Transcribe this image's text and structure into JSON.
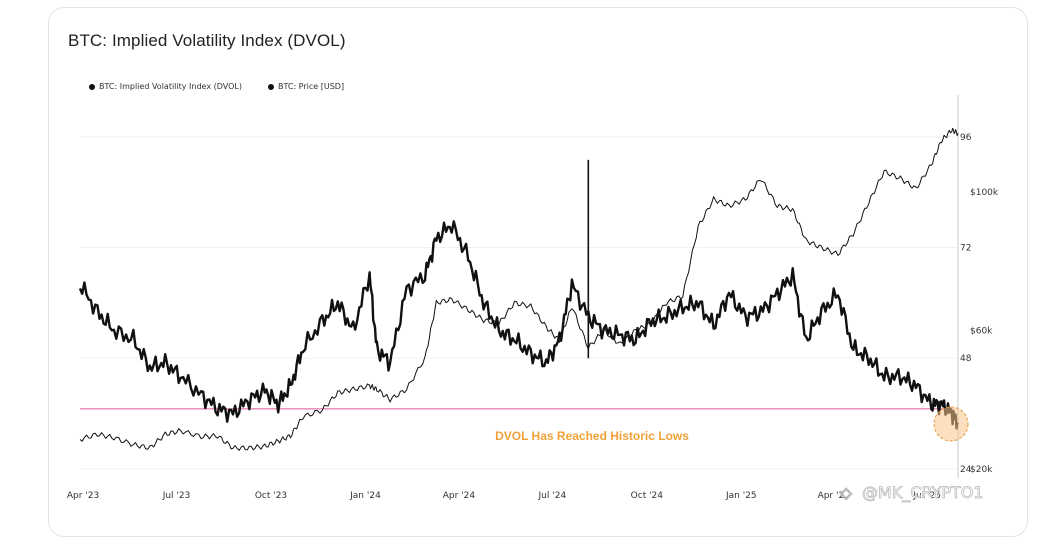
{
  "title": "BTC: Implied Volatility Index (DVOL)",
  "legend": [
    {
      "label": "BTC: Implied Volatility Index (DVOL)",
      "color": "#111111"
    },
    {
      "label": "BTC: Price [USD]",
      "color": "#111111"
    }
  ],
  "watermark": "@MK_CRYPTO1",
  "watermark_icon": "share-icon",
  "annotation": {
    "label": "DVOL Has Reached Historic Lows",
    "color": "#f0a238",
    "line_color": "#d9579a",
    "dvol_level": 37
  },
  "chart_data": {
    "type": "line",
    "title": "BTC: Implied Volatility Index (DVOL)",
    "x_tick_labels": [
      "Apr '23",
      "Jul '23",
      "Oct '23",
      "Jan '24",
      "Apr '24",
      "Jul '24",
      "Oct '24",
      "Jan '25",
      "Apr '25",
      "Jul '25"
    ],
    "x_range": [
      "2023-03-29",
      "2025-07-31"
    ],
    "y_left": {
      "ticks": [
        96,
        72,
        48,
        24
      ],
      "range": [
        22,
        104
      ]
    },
    "y_right": {
      "ticks": [
        "$100k",
        "$60k",
        "$20k"
      ],
      "values": [
        100000,
        60000,
        20000
      ],
      "scale": "linear"
    },
    "grid": "horizontal",
    "legend_position": "top-left",
    "series": [
      {
        "name": "BTC: Implied Volatility Index (DVOL)",
        "axis": "left",
        "color": "#111111",
        "x": [
          "2023-03-29",
          "2023-04-15",
          "2023-05-01",
          "2023-05-20",
          "2023-06-05",
          "2023-06-20",
          "2023-07-05",
          "2023-07-25",
          "2023-08-10",
          "2023-08-25",
          "2023-09-10",
          "2023-09-25",
          "2023-10-08",
          "2023-10-20",
          "2023-11-01",
          "2023-11-20",
          "2023-12-05",
          "2023-12-20",
          "2024-01-05",
          "2024-01-12",
          "2024-01-25",
          "2024-02-10",
          "2024-02-28",
          "2024-03-10",
          "2024-03-25",
          "2024-04-10",
          "2024-04-25",
          "2024-05-10",
          "2024-05-25",
          "2024-06-10",
          "2024-06-25",
          "2024-07-08",
          "2024-07-20",
          "2024-08-05",
          "2024-08-20",
          "2024-09-05",
          "2024-09-20",
          "2024-10-05",
          "2024-10-20",
          "2024-11-05",
          "2024-11-20",
          "2024-12-05",
          "2024-12-20",
          "2025-01-05",
          "2025-01-20",
          "2025-02-05",
          "2025-02-20",
          "2025-03-05",
          "2025-03-20",
          "2025-04-05",
          "2025-04-20",
          "2025-05-05",
          "2025-05-20",
          "2025-06-05",
          "2025-06-20",
          "2025-07-05",
          "2025-07-15",
          "2025-07-25",
          "2025-07-31"
        ],
        "y": [
          64,
          58,
          54,
          52,
          46,
          47,
          44,
          40,
          37,
          36,
          39,
          41,
          38,
          42,
          50,
          56,
          60,
          54,
          66,
          50,
          47,
          63,
          66,
          74,
          77,
          70,
          60,
          54,
          52,
          49,
          47,
          52,
          64,
          57,
          54,
          53,
          52,
          56,
          57,
          59,
          60,
          55,
          62,
          57,
          58,
          62,
          66,
          52,
          58,
          62,
          50,
          48,
          44,
          44,
          42,
          38,
          38,
          36,
          34
        ]
      },
      {
        "name": "BTC: Price [USD]",
        "axis": "right",
        "color": "#111111",
        "x": [
          "2023-03-29",
          "2023-04-15",
          "2023-05-01",
          "2023-05-20",
          "2023-06-05",
          "2023-06-20",
          "2023-07-05",
          "2023-07-25",
          "2023-08-10",
          "2023-08-25",
          "2023-09-10",
          "2023-09-25",
          "2023-10-08",
          "2023-10-20",
          "2023-11-01",
          "2023-11-20",
          "2023-12-05",
          "2023-12-20",
          "2024-01-05",
          "2024-01-12",
          "2024-01-25",
          "2024-02-10",
          "2024-02-28",
          "2024-03-10",
          "2024-03-25",
          "2024-04-10",
          "2024-04-25",
          "2024-05-10",
          "2024-05-25",
          "2024-06-10",
          "2024-06-25",
          "2024-07-08",
          "2024-07-20",
          "2024-08-05",
          "2024-08-20",
          "2024-09-05",
          "2024-09-20",
          "2024-10-05",
          "2024-10-20",
          "2024-11-05",
          "2024-11-20",
          "2024-12-05",
          "2024-12-20",
          "2025-01-05",
          "2025-01-20",
          "2025-02-05",
          "2025-02-20",
          "2025-03-05",
          "2025-03-20",
          "2025-04-05",
          "2025-04-20",
          "2025-05-05",
          "2025-05-20",
          "2025-06-05",
          "2025-06-20",
          "2025-07-05",
          "2025-07-15",
          "2025-07-25",
          "2025-07-31"
        ],
        "y": [
          28500,
          30000,
          29000,
          27000,
          26000,
          30000,
          31000,
          29300,
          29500,
          26000,
          26000,
          26500,
          28000,
          29500,
          35000,
          37000,
          42000,
          43000,
          44000,
          43000,
          40000,
          43000,
          52000,
          68000,
          69000,
          66000,
          63000,
          62000,
          68000,
          67000,
          61000,
          57000,
          67000,
          55000,
          60000,
          56000,
          60000,
          62000,
          68000,
          70000,
          90000,
          98000,
          96000,
          98000,
          104000,
          96000,
          95000,
          86000,
          84000,
          82000,
          88000,
          97000,
          106000,
          104000,
          101000,
          108000,
          115000,
          118000,
          117000
        ]
      }
    ]
  }
}
